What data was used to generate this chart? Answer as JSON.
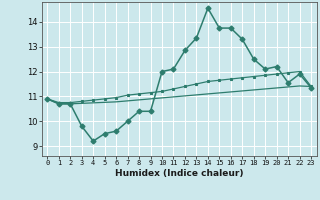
{
  "xlabel": "Humidex (Indice chaleur)",
  "background_color": "#cce8ec",
  "grid_color": "#ffffff",
  "line_color": "#2e7d6e",
  "x_ticks": [
    0,
    1,
    2,
    3,
    4,
    5,
    6,
    7,
    8,
    9,
    10,
    11,
    12,
    13,
    14,
    15,
    16,
    17,
    18,
    19,
    20,
    21,
    22,
    23
  ],
  "y_ticks": [
    9,
    10,
    11,
    12,
    13,
    14
  ],
  "ylim": [
    8.6,
    14.8
  ],
  "xlim": [
    -0.5,
    23.5
  ],
  "line1": [
    10.9,
    10.7,
    10.7,
    9.8,
    9.2,
    9.5,
    9.6,
    10.0,
    10.4,
    10.4,
    12.0,
    12.1,
    12.85,
    13.35,
    14.55,
    13.75,
    13.75,
    13.3,
    12.5,
    12.1,
    12.2,
    11.55,
    11.9,
    11.35
  ],
  "line2": [
    10.9,
    10.75,
    10.75,
    10.8,
    10.85,
    10.9,
    10.95,
    11.05,
    11.1,
    11.15,
    11.2,
    11.3,
    11.4,
    11.5,
    11.6,
    11.65,
    11.7,
    11.75,
    11.8,
    11.85,
    11.9,
    11.95,
    12.0,
    11.4
  ],
  "line3": [
    10.9,
    10.7,
    10.7,
    10.72,
    10.74,
    10.76,
    10.78,
    10.82,
    10.86,
    10.9,
    10.94,
    10.98,
    11.02,
    11.06,
    11.1,
    11.14,
    11.18,
    11.22,
    11.26,
    11.3,
    11.34,
    11.38,
    11.42,
    11.4
  ]
}
